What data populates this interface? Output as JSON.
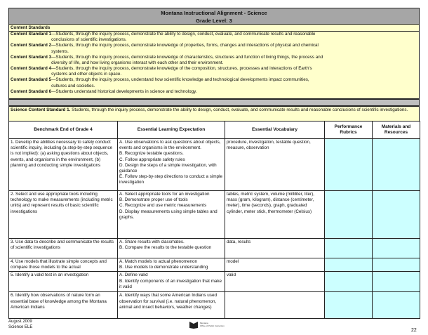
{
  "title": {
    "line1": "Montana Instructional Alignment - Science",
    "line2": "Grade Level: 3"
  },
  "content_standards": {
    "heading": "Content Standards",
    "items": [
      {
        "label": "Content Standard 1",
        "text": "—Students, through the inquiry process, demonstrate the ability to design, conduct, evaluate, and communicate results and reasonable conclusions of scientific investigations."
      },
      {
        "label": "Content Standard 2",
        "text": "—Students, through the inquiry process, demonstrate knowledge of properties, forms, changes and interactions of physical and chemical systems."
      },
      {
        "label": "Content Standard 3",
        "text": "—Students, through the inquiry process, demonstrate knowledge of characteristics, structures and function of living things, the process and diversity of life, and how living organisms interact with each other and their environment."
      },
      {
        "label": "Content Standard 4",
        "text": "—Students, through the inquiry process, demonstrate knowledge of the composition, structures, processes and interactions of Earth's systems and other objects in space."
      },
      {
        "label": "Content Standard 5",
        "text": "—Students, through the inquiry process, understand how scientific knowledge and technological developments impact communities, cultures and societies."
      },
      {
        "label": "Content Standard 6",
        "text": "—Students understand historical developments in science and technology."
      }
    ]
  },
  "science_standard": {
    "label": "Science Content Standard 1.",
    "text": " Students, through the inquiry process, demonstrate the ability to design, conduct, evaluate, and communicate results and reasonable conclusions of scientific investigations."
  },
  "table": {
    "headers": [
      "Benchmark End of Grade 4",
      "Essential Learning Expectation",
      "Essential Vocabulary",
      "Performance Rubrics",
      "Materials and Resources"
    ],
    "rows": [
      {
        "benchmark": "1. Develop the abilities necessary to safely conduct scientific inquiry, including (a step-by-step sequence is not implied): (a) asking questions about objects, events, and organisms in the environment, (b) planning and conducting simple investigations",
        "expectations": [
          "A. Use observations to ask questions about objects, events and organisms in the environment.",
          "B. Recognize testable questions.",
          "C. Follow appropriate safety rules",
          "D. Design the steps of a simple investigation, with guidance",
          "E. Follow step-by-step directions to conduct a simple investigation"
        ],
        "vocabulary": "procedure, investigation, testable question, measure, observation"
      },
      {
        "benchmark": "2. Select and use appropriate tools including technology to make measurements (including metric units) and represent results of basic scientific investigations",
        "expectations": [
          "A. Select appropriate tools for an investigation",
          "B. Demonstrate proper use of tools",
          "C. Recognize and use metric measurements",
          "D. Display measurements using simple tables and graphs."
        ],
        "vocabulary": "tables, metric system, volume (milliliter, liter), mass (gram, kilogram), distance (centimeter, meter), time (seconds), graph, graduated cylinder, meter stick, thermometer (Celsius)"
      },
      {
        "benchmark": "3. Use data to describe and communicate the results of scientific investigations",
        "expectations": [
          "A. Share results with classmates.",
          "B. Compare the results to the testable question"
        ],
        "vocabulary": "data, results"
      },
      {
        "benchmark": "4. Use models that illustrate simple concepts and compare those models to the actual",
        "expectations": [
          "A. Match models to actual phenomenon",
          "B. Use models to demonstrate understanding"
        ],
        "vocabulary": "model"
      },
      {
        "benchmark": "5. Identify a valid test in an investigation",
        "expectations": [
          "A. Define valid",
          "B. Identify components of an investigation that make it valid"
        ],
        "vocabulary": "valid"
      },
      {
        "benchmark": "6. Identify how observations of nature form an essential base of knowledge among the Montana American Indians",
        "expectations": [
          "A. Identify ways that some American Indians used observation for survival (i.e. natural phenomenon, animal and insect behaviors, weather changes)"
        ],
        "vocabulary": ""
      }
    ]
  },
  "footer": {
    "date": "August 2009",
    "doc": "Science ELE",
    "page": "22",
    "logo_text": "Montana Office of Public Instruction"
  },
  "colors": {
    "header_gray": "#a6a6a6",
    "standards_yellow": "#ffffcc",
    "rubric_cyan": "#ccffff"
  }
}
